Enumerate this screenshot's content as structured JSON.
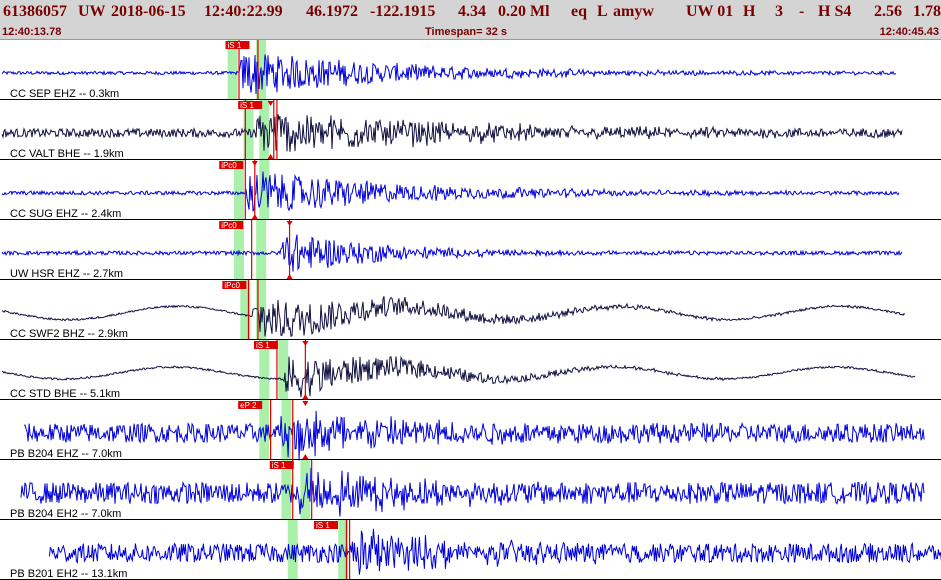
{
  "header": {
    "event_id": "61386057",
    "network": "UW",
    "date": "2018-06-15",
    "origin_time": "12:40:22.99",
    "latitude": "46.1972",
    "longitude": "-122.1915",
    "depth": "4.34",
    "magnitude": "0.20 Ml",
    "event_type": "eq",
    "location_flag": "L",
    "author": "amyw",
    "source": "UW 01",
    "quality": "H",
    "field_3": "3",
    "dash": "-",
    "field_hs": "H S4",
    "val_a": "2.56",
    "val_b": "1.78",
    "start_time": "12:40:13.78",
    "timespan": "Timespan=  32 s",
    "end_time": "12:40:45.43"
  },
  "colors": {
    "header_bg": "#d4d4d4",
    "header_text": "#7a0000",
    "trace_blue": "#0000dd",
    "trace_navy": "#101040",
    "pick_green": "#aaf0aa",
    "pick_red": "#dd0000",
    "separator": "#000000"
  },
  "traces": [
    {
      "label": "CC SEP EHZ -- 0.3km",
      "color": "blue",
      "picks": [
        {
          "label": "iS 1",
          "time": 7.2
        }
      ],
      "green_times": [
        7.3,
        8.2
      ],
      "red_times": [
        7.5,
        8.1
      ],
      "noise": 0.07,
      "lowfreq": 0.0,
      "onset": 7.5,
      "amp": 1.0,
      "decay": 5.0,
      "start": 0.0,
      "end": 28.3
    },
    {
      "label": "CC VALT BHE -- 1.9km",
      "color": "navy",
      "picks": [
        {
          "label": "iS 1",
          "time": 7.6
        },
        {
          "label": "",
          "time": 8.5
        }
      ],
      "green_times": [
        7.8,
        8.3
      ],
      "red_times": [
        7.7,
        8.6,
        8.7
      ],
      "noise": 0.18,
      "lowfreq": 0.0,
      "onset": 8.0,
      "amp": 1.0,
      "decay": 6.0,
      "start": 0.0,
      "end": 28.5
    },
    {
      "label": "CC SUG EHZ -- 2.4km",
      "color": "blue",
      "picks": [
        {
          "label": "iPc0",
          "time": 7.0
        },
        {
          "label": "",
          "time": 8.0
        }
      ],
      "green_times": [
        7.5,
        8.3
      ],
      "red_times": [
        7.7,
        8.0
      ],
      "noise": 0.08,
      "lowfreq": 0.0,
      "onset": 7.7,
      "amp": 1.0,
      "decay": 5.0,
      "start": 0.0,
      "end": 28.4
    },
    {
      "label": "UW HSR EHZ -- 2.7km",
      "color": "blue",
      "picks": [
        {
          "label": "iPc0",
          "time": 7.0
        },
        {
          "label": "",
          "time": 9.1
        }
      ],
      "green_times": [
        7.5,
        8.2
      ],
      "red_times": [
        7.9,
        9.1
      ],
      "noise": 0.08,
      "lowfreq": 0.0,
      "onset": 8.8,
      "amp": 1.0,
      "decay": 3.0,
      "start": 0.0,
      "end": 28.5
    },
    {
      "label": "CC SWF2 BHZ -- 2.9km",
      "color": "navy",
      "picks": [
        {
          "label": "iPc0",
          "time": 7.1
        }
      ],
      "green_times": [
        7.7,
        8.2
      ],
      "red_times": [
        7.8,
        8.1
      ],
      "noise": 0.04,
      "lowfreq": 0.28,
      "onset": 7.9,
      "amp": 1.0,
      "decay": 5.0,
      "start": 0.0,
      "end": 28.6
    },
    {
      "label": "CC STD BHE -- 5.1km",
      "color": "navy",
      "picks": [
        {
          "label": "iS 1",
          "time": 8.1
        },
        {
          "label": "",
          "time": 9.6
        }
      ],
      "green_times": [
        8.3,
        8.9
      ],
      "red_times": [
        8.7,
        9.6
      ],
      "noise": 0.04,
      "lowfreq": 0.25,
      "onset": 8.9,
      "amp": 1.0,
      "decay": 4.0,
      "start": 0.0,
      "end": 28.9
    },
    {
      "label": "PB B204 EHZ -- 7.0km",
      "color": "blue",
      "picks": [
        {
          "label": "eP 2",
          "time": 7.6
        },
        {
          "label": "",
          "time": 9.6
        }
      ],
      "green_times": [
        8.3,
        9.0
      ],
      "red_times": [
        8.5,
        9.2
      ],
      "noise": 0.4,
      "lowfreq": 0.0,
      "onset": 8.8,
      "amp": 1.0,
      "decay": 4.0,
      "start": 0.7,
      "end": 29.2
    },
    {
      "label": "PB B204 EH2 -- 7.0km",
      "color": "blue",
      "picks": [
        {
          "label": "iS 1",
          "time": 8.6
        }
      ],
      "green_times": [
        9.0,
        9.6
      ],
      "red_times": [
        9.2,
        9.8
      ],
      "noise": 0.45,
      "lowfreq": 0.0,
      "onset": 9.3,
      "amp": 1.0,
      "decay": 3.0,
      "start": 0.6,
      "end": 29.2
    },
    {
      "label": "PB B201 EH2 -- 13.1km",
      "color": "blue",
      "picks": [
        {
          "label": "iS 1",
          "time": 10.0
        }
      ],
      "green_times": [
        9.2,
        10.8
      ],
      "red_times": [
        10.9,
        11.0
      ],
      "noise": 0.4,
      "lowfreq": 0.0,
      "onset": 11.0,
      "amp": 1.0,
      "decay": 3.0,
      "start": 1.5,
      "end": 29.8
    }
  ]
}
